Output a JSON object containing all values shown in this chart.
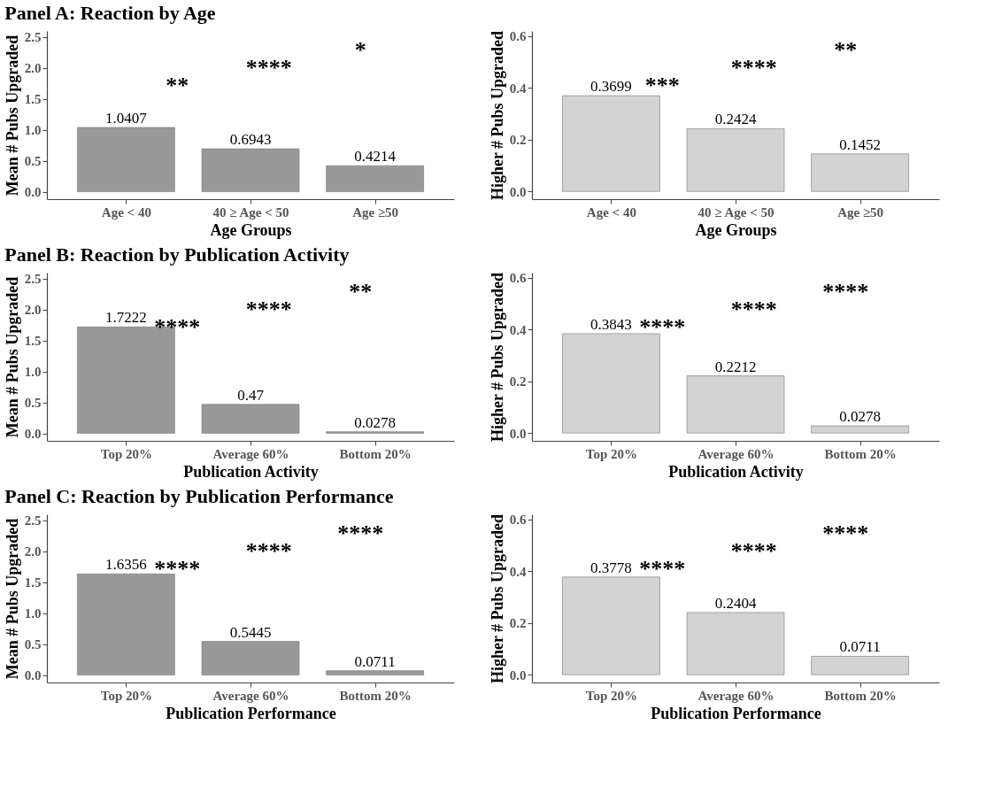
{
  "chart_data": [
    {
      "type": "bar",
      "title": "Panel A: Reaction by Age",
      "xlabel": "Age Groups",
      "ylabel": "Mean # Pubs Upgraded",
      "categories": [
        "Age < 40",
        "40 ≥ Age < 50",
        "Age ≥50"
      ],
      "values": [
        1.0407,
        0.6943,
        0.4214
      ],
      "color": "#999999",
      "ylim": [
        -0.12,
        2.6
      ],
      "yticks": [
        {
          "value": 0,
          "label": "0.0"
        },
        0.5,
        {
          "value": 1,
          "label": "1.0"
        },
        1.5,
        {
          "value": 2,
          "label": "2.0"
        },
        2.5
      ],
      "data_labels": true,
      "annotations": [
        "**",
        "****",
        "*"
      ]
    },
    {
      "type": "bar",
      "xlabel": "Age Groups",
      "ylabel": "Higher # Pubs Upgraded",
      "categories": [
        "Age < 40",
        "40 ≥ Age < 50",
        "Age ≥50"
      ],
      "values": [
        0.3699,
        0.2424,
        0.1452
      ],
      "color": "#d3d3d3",
      "ylim": [
        -0.03,
        0.62
      ],
      "yticks": [
        {
          "value": 0,
          "label": "0.0"
        },
        0.2,
        0.4,
        0.6
      ],
      "data_labels": true,
      "annotations": [
        "***",
        "****",
        "**"
      ]
    },
    {
      "type": "bar",
      "title": "Panel B: Reaction by Publication Activity",
      "xlabel": "Publication Activity",
      "ylabel": "Mean # Pubs Upgraded",
      "categories": [
        "Top 20%",
        "Average 60%",
        "Bottom 20%"
      ],
      "values": [
        1.7222,
        0.47,
        0.0278
      ],
      "color": "#999999",
      "ylim": [
        -0.12,
        2.6
      ],
      "yticks": [
        {
          "value": 0,
          "label": "0.0"
        },
        0.5,
        {
          "value": 1,
          "label": "1.0"
        },
        1.5,
        {
          "value": 2,
          "label": "2.0"
        },
        2.5
      ],
      "data_labels": true,
      "annotations": [
        "****",
        "****",
        "**"
      ]
    },
    {
      "type": "bar",
      "xlabel": "Publication Activity",
      "ylabel": "Higher # Pubs Upgraded",
      "categories": [
        "Top 20%",
        "Average 60%",
        "Bottom 20%"
      ],
      "values": [
        0.3843,
        0.2212,
        0.0278
      ],
      "color": "#d3d3d3",
      "ylim": [
        -0.03,
        0.62
      ],
      "yticks": [
        {
          "value": 0,
          "label": "0.0"
        },
        0.2,
        0.4,
        0.6
      ],
      "data_labels": true,
      "annotations": [
        "****",
        "****",
        "****"
      ]
    },
    {
      "type": "bar",
      "title": "Panel C: Reaction by Publication Performance",
      "xlabel": "Publication Performance",
      "ylabel": "Mean # Pubs Upgraded",
      "categories": [
        "Top 20%",
        "Average 60%",
        "Bottom 20%"
      ],
      "values": [
        1.6356,
        0.5445,
        0.0711
      ],
      "color": "#999999",
      "ylim": [
        -0.12,
        2.6
      ],
      "yticks": [
        {
          "value": 0,
          "label": "0.0"
        },
        0.5,
        {
          "value": 1,
          "label": "1.0"
        },
        1.5,
        {
          "value": 2,
          "label": "2.0"
        },
        2.5
      ],
      "data_labels": true,
      "annotations": [
        "****",
        "****",
        "****"
      ]
    },
    {
      "type": "bar",
      "xlabel": "Publication Performance",
      "ylabel": "Higher # Pubs Upgraded",
      "categories": [
        "Top 20%",
        "Average 60%",
        "Bottom 20%"
      ],
      "values": [
        0.3778,
        0.2404,
        0.0711
      ],
      "color": "#d3d3d3",
      "ylim": [
        -0.03,
        0.62
      ],
      "yticks": [
        {
          "value": 0,
          "label": "0.0"
        },
        0.2,
        0.4,
        0.6
      ],
      "data_labels": true,
      "annotations": [
        "****",
        "****",
        "****"
      ]
    }
  ]
}
